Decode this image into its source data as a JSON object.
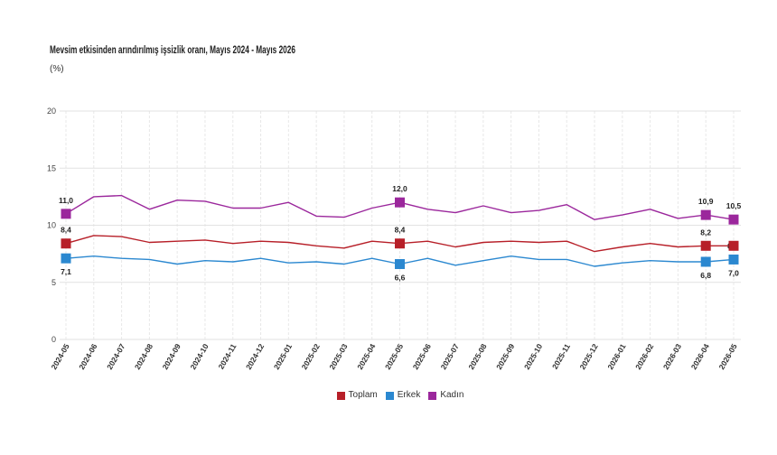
{
  "chart_data": {
    "type": "line",
    "title": "Mevsim etkisinden arındırılmış işsizlik oranı, Mayıs 2024 - Mayıs 2026",
    "subtitle": "(%)",
    "xlabel": "",
    "ylabel": "",
    "ylim": [
      0,
      20
    ],
    "yticks": [
      0,
      5,
      10,
      15,
      20
    ],
    "grid": true,
    "legend": "bottom",
    "categories": [
      "2024-05",
      "2024-06",
      "2024-07",
      "2024-08",
      "2024-09",
      "2024-10",
      "2024-11",
      "2024-12",
      "2025-01",
      "2025-02",
      "2025-03",
      "2025-04",
      "2025-05",
      "2025-06",
      "2025-07",
      "2025-08",
      "2025-09",
      "2025-10",
      "2025-11",
      "2025-12",
      "2026-01",
      "2026-02",
      "2026-03",
      "2026-04",
      "2026-05"
    ],
    "series": [
      {
        "name": "Toplam",
        "color": "#b71f28",
        "values": [
          8.4,
          9.1,
          9.0,
          8.5,
          8.6,
          8.7,
          8.4,
          8.6,
          8.5,
          8.2,
          8.0,
          8.6,
          8.4,
          8.6,
          8.1,
          8.5,
          8.6,
          8.5,
          8.6,
          7.7,
          8.1,
          8.4,
          8.1,
          8.2,
          8.2
        ],
        "data_labels": [
          {
            "category": "2024-05",
            "text": "8,4"
          },
          {
            "category": "2025-05",
            "text": "8,4"
          },
          {
            "category": "2026-04",
            "text": "8,2"
          },
          {
            "category": "2026-05",
            "text": "8,2"
          }
        ]
      },
      {
        "name": "Erkek",
        "color": "#2b88d0",
        "values": [
          7.1,
          7.3,
          7.1,
          7.0,
          6.6,
          6.9,
          6.8,
          7.1,
          6.7,
          6.8,
          6.6,
          7.1,
          6.6,
          7.1,
          6.5,
          6.9,
          7.3,
          7.0,
          7.0,
          6.4,
          6.7,
          6.9,
          6.8,
          6.8,
          7.0
        ],
        "data_labels": [
          {
            "category": "2024-05",
            "text": "7,1"
          },
          {
            "category": "2025-05",
            "text": "6,6"
          },
          {
            "category": "2026-04",
            "text": "6,8"
          },
          {
            "category": "2026-05",
            "text": "7,0"
          }
        ]
      },
      {
        "name": "Kadın",
        "color": "#9b279c",
        "values": [
          11.0,
          12.5,
          12.6,
          11.4,
          12.2,
          12.1,
          11.5,
          11.5,
          12.0,
          10.8,
          10.7,
          11.5,
          12.0,
          11.4,
          11.1,
          11.7,
          11.1,
          11.3,
          11.8,
          10.5,
          10.9,
          11.4,
          10.6,
          10.9,
          10.5
        ],
        "data_labels": [
          {
            "category": "2024-05",
            "text": "11,0"
          },
          {
            "category": "2025-05",
            "text": "12,0"
          },
          {
            "category": "2026-04",
            "text": "10,9"
          },
          {
            "category": "2026-05",
            "text": "10,5"
          }
        ]
      }
    ]
  }
}
